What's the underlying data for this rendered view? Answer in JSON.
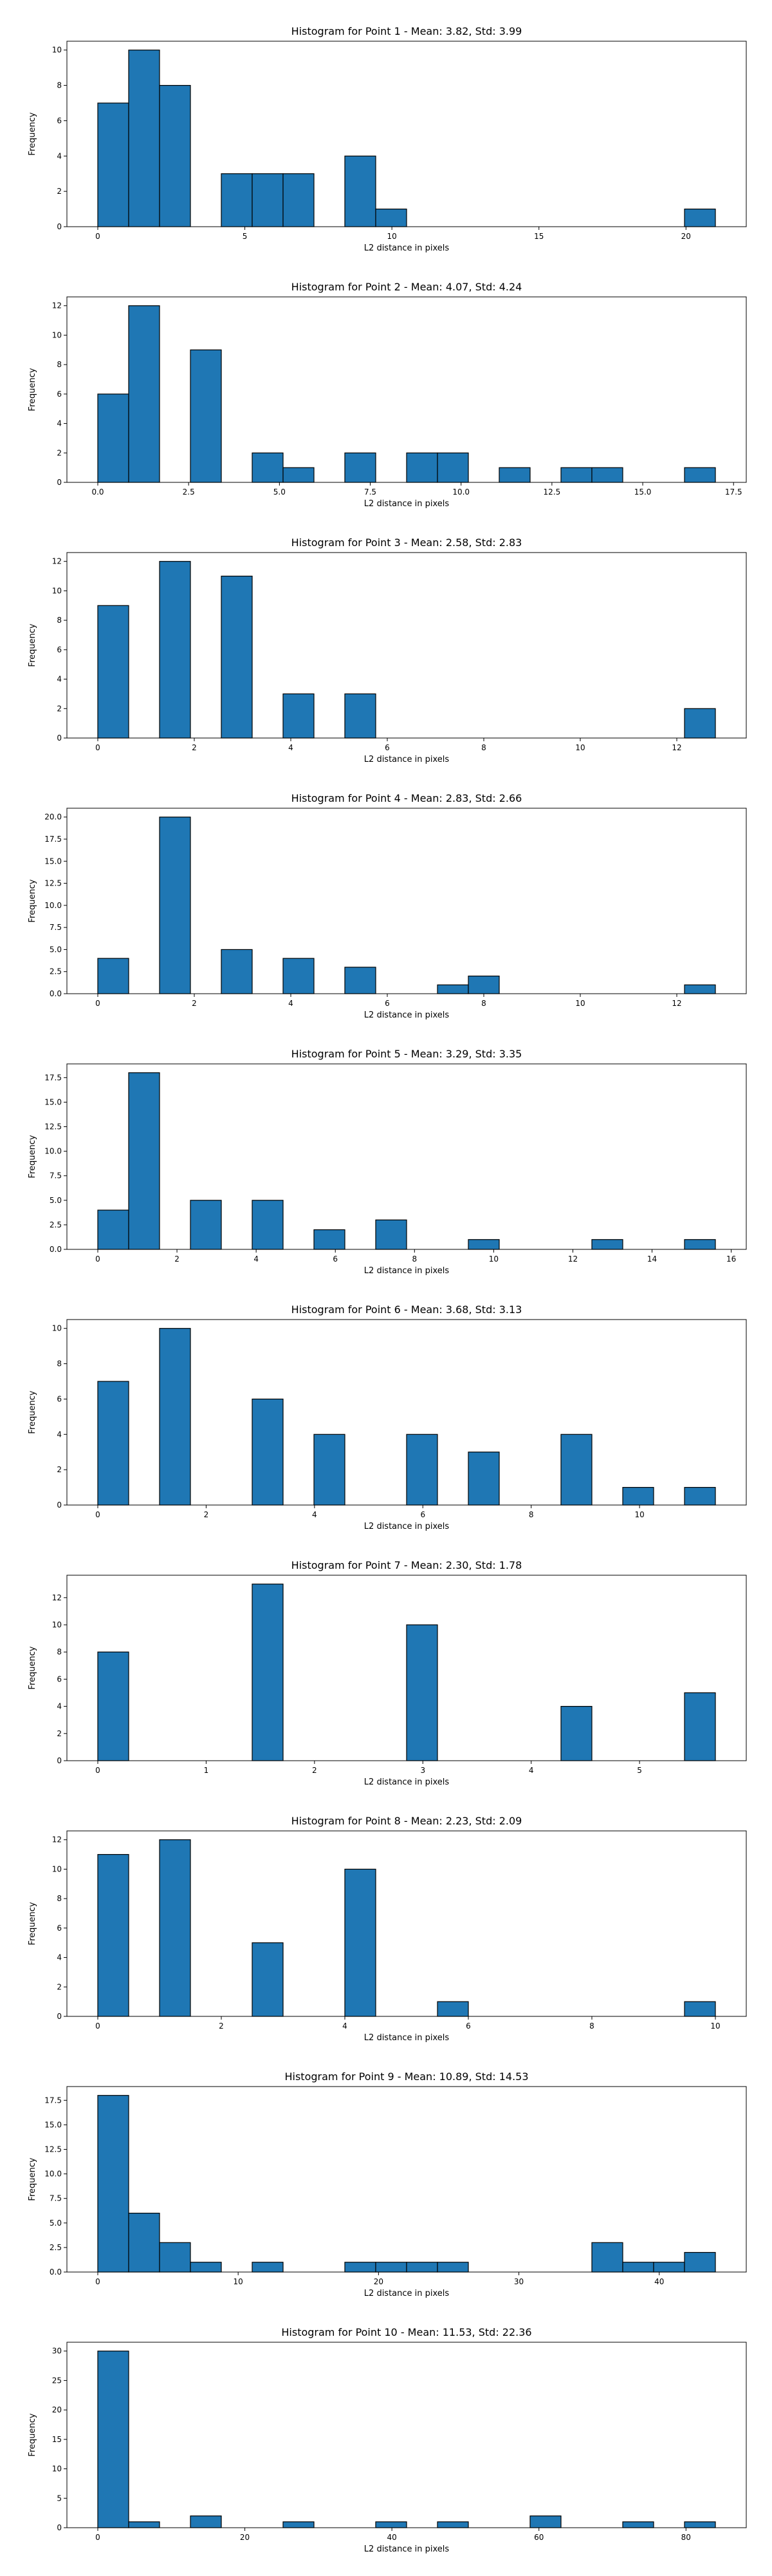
{
  "colors": {
    "bar": "#1f77b4",
    "edge": "#000000",
    "axis": "#000000",
    "background": "#ffffff"
  },
  "chart_data": [
    {
      "type": "bar",
      "title": "Histogram for Point 1 - Mean: 3.82, Std: 3.99",
      "xlabel": "L2 distance in pixels",
      "ylabel": "Frequency",
      "xlim": [
        -1.05,
        22.05
      ],
      "ylim": [
        0,
        10.5
      ],
      "xticks": [
        0,
        5,
        10,
        15,
        20
      ],
      "xtick_labels": [
        "0",
        "5",
        "10",
        "15",
        "20"
      ],
      "yticks": [
        0,
        2,
        4,
        6,
        8,
        10
      ],
      "ytick_labels": [
        "0",
        "2",
        "4",
        "6",
        "8",
        "10"
      ],
      "bin_width": 1.05,
      "bins": [
        {
          "x": 0.0,
          "count": 7
        },
        {
          "x": 1.05,
          "count": 10
        },
        {
          "x": 2.1,
          "count": 8
        },
        {
          "x": 4.2,
          "count": 3
        },
        {
          "x": 5.25,
          "count": 3
        },
        {
          "x": 6.3,
          "count": 3
        },
        {
          "x": 8.4,
          "count": 4
        },
        {
          "x": 9.45,
          "count": 1
        },
        {
          "x": 19.95,
          "count": 1
        }
      ]
    },
    {
      "type": "bar",
      "title": "Histogram for Point 2 - Mean: 4.07, Std: 4.24",
      "xlabel": "L2 distance in pixels",
      "ylabel": "Frequency",
      "xlim": [
        -0.85,
        17.85
      ],
      "ylim": [
        0,
        12.6
      ],
      "xticks": [
        0,
        2.5,
        5,
        7.5,
        10,
        12.5,
        15,
        17.5
      ],
      "xtick_labels": [
        "0.0",
        "2.5",
        "5.0",
        "7.5",
        "10.0",
        "12.5",
        "15.0",
        "17.5"
      ],
      "yticks": [
        0,
        2,
        4,
        6,
        8,
        10,
        12
      ],
      "ytick_labels": [
        "0",
        "2",
        "4",
        "6",
        "8",
        "10",
        "12"
      ],
      "bin_width": 0.85,
      "bins": [
        {
          "x": 0.0,
          "count": 6
        },
        {
          "x": 0.85,
          "count": 12
        },
        {
          "x": 2.55,
          "count": 9
        },
        {
          "x": 4.25,
          "count": 2
        },
        {
          "x": 5.1,
          "count": 1
        },
        {
          "x": 6.8,
          "count": 2
        },
        {
          "x": 8.5,
          "count": 2
        },
        {
          "x": 9.35,
          "count": 2
        },
        {
          "x": 11.05,
          "count": 1
        },
        {
          "x": 12.75,
          "count": 1
        },
        {
          "x": 13.6,
          "count": 1
        },
        {
          "x": 16.15,
          "count": 1
        }
      ]
    },
    {
      "type": "bar",
      "title": "Histogram for Point 3 - Mean: 2.58, Std: 2.83",
      "xlabel": "L2 distance in pixels",
      "ylabel": "Frequency",
      "xlim": [
        -0.64,
        13.44
      ],
      "ylim": [
        0,
        12.6
      ],
      "xticks": [
        0,
        2,
        4,
        6,
        8,
        10,
        12
      ],
      "xtick_labels": [
        "0",
        "2",
        "4",
        "6",
        "8",
        "10",
        "12"
      ],
      "yticks": [
        0,
        2,
        4,
        6,
        8,
        10,
        12
      ],
      "ytick_labels": [
        "0",
        "2",
        "4",
        "6",
        "8",
        "10",
        "12"
      ],
      "bin_width": 0.64,
      "bins": [
        {
          "x": 0.0,
          "count": 9
        },
        {
          "x": 1.28,
          "count": 12
        },
        {
          "x": 2.56,
          "count": 11
        },
        {
          "x": 3.84,
          "count": 3
        },
        {
          "x": 5.12,
          "count": 3
        },
        {
          "x": 12.16,
          "count": 2
        }
      ]
    },
    {
      "type": "bar",
      "title": "Histogram for Point 4 - Mean: 2.83, Std: 2.66",
      "xlabel": "L2 distance in pixels",
      "ylabel": "Frequency",
      "xlim": [
        -0.64,
        13.44
      ],
      "ylim": [
        0,
        21
      ],
      "xticks": [
        0,
        2,
        4,
        6,
        8,
        10,
        12
      ],
      "xtick_labels": [
        "0",
        "2",
        "4",
        "6",
        "8",
        "10",
        "12"
      ],
      "yticks": [
        0,
        2.5,
        5,
        7.5,
        10,
        12.5,
        15,
        17.5,
        20
      ],
      "ytick_labels": [
        "0.0",
        "2.5",
        "5.0",
        "7.5",
        "10.0",
        "12.5",
        "15.0",
        "17.5",
        "20.0"
      ],
      "bin_width": 0.64,
      "bins": [
        {
          "x": 0.0,
          "count": 4
        },
        {
          "x": 1.28,
          "count": 20
        },
        {
          "x": 2.56,
          "count": 5
        },
        {
          "x": 3.84,
          "count": 4
        },
        {
          "x": 5.12,
          "count": 3
        },
        {
          "x": 7.04,
          "count": 1
        },
        {
          "x": 7.68,
          "count": 2
        },
        {
          "x": 12.16,
          "count": 1
        }
      ]
    },
    {
      "type": "bar",
      "title": "Histogram for Point 5 - Mean: 3.29, Std: 3.35",
      "xlabel": "L2 distance in pixels",
      "ylabel": "Frequency",
      "xlim": [
        -0.78,
        16.38
      ],
      "ylim": [
        0,
        18.9
      ],
      "xticks": [
        0,
        2,
        4,
        6,
        8,
        10,
        12,
        14,
        16
      ],
      "xtick_labels": [
        "0",
        "2",
        "4",
        "6",
        "8",
        "10",
        "12",
        "14",
        "16"
      ],
      "yticks": [
        0,
        2.5,
        5,
        7.5,
        10,
        12.5,
        15,
        17.5
      ],
      "ytick_labels": [
        "0.0",
        "2.5",
        "5.0",
        "7.5",
        "10.0",
        "12.5",
        "15.0",
        "17.5"
      ],
      "bin_width": 0.78,
      "bins": [
        {
          "x": 0.0,
          "count": 4
        },
        {
          "x": 0.78,
          "count": 18
        },
        {
          "x": 2.34,
          "count": 5
        },
        {
          "x": 3.9,
          "count": 5
        },
        {
          "x": 5.46,
          "count": 2
        },
        {
          "x": 7.02,
          "count": 3
        },
        {
          "x": 9.36,
          "count": 1
        },
        {
          "x": 12.48,
          "count": 1
        },
        {
          "x": 14.82,
          "count": 1
        }
      ]
    },
    {
      "type": "bar",
      "title": "Histogram for Point 6 - Mean: 3.68, Std: 3.13",
      "xlabel": "L2 distance in pixels",
      "ylabel": "Frequency",
      "xlim": [
        -0.57,
        11.97
      ],
      "ylim": [
        0,
        10.5
      ],
      "xticks": [
        0,
        2,
        4,
        6,
        8,
        10
      ],
      "xtick_labels": [
        "0",
        "2",
        "4",
        "6",
        "8",
        "10"
      ],
      "yticks": [
        0,
        2,
        4,
        6,
        8,
        10
      ],
      "ytick_labels": [
        "0",
        "2",
        "4",
        "6",
        "8",
        "10"
      ],
      "bin_width": 0.57,
      "bins": [
        {
          "x": 0.0,
          "count": 7
        },
        {
          "x": 1.14,
          "count": 10
        },
        {
          "x": 2.85,
          "count": 6
        },
        {
          "x": 3.99,
          "count": 4
        },
        {
          "x": 5.7,
          "count": 4
        },
        {
          "x": 6.84,
          "count": 3
        },
        {
          "x": 8.55,
          "count": 4
        },
        {
          "x": 9.69,
          "count": 1
        },
        {
          "x": 10.83,
          "count": 1
        }
      ]
    },
    {
      "type": "bar",
      "title": "Histogram for Point 7 - Mean: 2.30, Std: 1.78",
      "xlabel": "L2 distance in pixels",
      "ylabel": "Frequency",
      "xlim": [
        -0.285,
        5.985
      ],
      "ylim": [
        0,
        13.65
      ],
      "xticks": [
        0,
        1,
        2,
        3,
        4,
        5
      ],
      "xtick_labels": [
        "0",
        "1",
        "2",
        "3",
        "4",
        "5"
      ],
      "yticks": [
        0,
        2,
        4,
        6,
        8,
        10,
        12
      ],
      "ytick_labels": [
        "0",
        "2",
        "4",
        "6",
        "8",
        "10",
        "12"
      ],
      "bin_width": 0.285,
      "bins": [
        {
          "x": 0.0,
          "count": 8
        },
        {
          "x": 1.425,
          "count": 13
        },
        {
          "x": 2.85,
          "count": 10
        },
        {
          "x": 4.275,
          "count": 4
        },
        {
          "x": 5.415,
          "count": 5
        }
      ]
    },
    {
      "type": "bar",
      "title": "Histogram for Point 8 - Mean: 2.23, Std: 2.09",
      "xlabel": "L2 distance in pixels",
      "ylabel": "Frequency",
      "xlim": [
        -0.5,
        10.5
      ],
      "ylim": [
        0,
        12.6
      ],
      "xticks": [
        0,
        2,
        4,
        6,
        8,
        10
      ],
      "xtick_labels": [
        "0",
        "2",
        "4",
        "6",
        "8",
        "10"
      ],
      "yticks": [
        0,
        2,
        4,
        6,
        8,
        10,
        12
      ],
      "ytick_labels": [
        "0",
        "2",
        "4",
        "6",
        "8",
        "10",
        "12"
      ],
      "bin_width": 0.5,
      "bins": [
        {
          "x": 0.0,
          "count": 11
        },
        {
          "x": 1.0,
          "count": 12
        },
        {
          "x": 2.5,
          "count": 5
        },
        {
          "x": 4.0,
          "count": 10
        },
        {
          "x": 5.5,
          "count": 1
        },
        {
          "x": 9.5,
          "count": 1
        }
      ]
    },
    {
      "type": "bar",
      "title": "Histogram for Point 9 - Mean: 10.89, Std: 14.53",
      "xlabel": "L2 distance in pixels",
      "ylabel": "Frequency",
      "xlim": [
        -2.2,
        46.2
      ],
      "ylim": [
        0,
        18.9
      ],
      "xticks": [
        0,
        10,
        20,
        30,
        40
      ],
      "xtick_labels": [
        "0",
        "10",
        "20",
        "30",
        "40"
      ],
      "yticks": [
        0,
        2.5,
        5,
        7.5,
        10,
        12.5,
        15,
        17.5
      ],
      "ytick_labels": [
        "0.0",
        "2.5",
        "5.0",
        "7.5",
        "10.0",
        "12.5",
        "15.0",
        "17.5"
      ],
      "bin_width": 2.2,
      "bins": [
        {
          "x": 0.0,
          "count": 18
        },
        {
          "x": 2.2,
          "count": 6
        },
        {
          "x": 4.4,
          "count": 3
        },
        {
          "x": 6.6,
          "count": 1
        },
        {
          "x": 11.0,
          "count": 1
        },
        {
          "x": 17.6,
          "count": 1
        },
        {
          "x": 19.8,
          "count": 1
        },
        {
          "x": 22.0,
          "count": 1
        },
        {
          "x": 24.2,
          "count": 1
        },
        {
          "x": 35.2,
          "count": 3
        },
        {
          "x": 37.4,
          "count": 1
        },
        {
          "x": 39.6,
          "count": 1
        },
        {
          "x": 41.8,
          "count": 2
        }
      ]
    },
    {
      "type": "bar",
      "title": "Histogram for Point 10 - Mean: 11.53, Std: 22.36",
      "xlabel": "L2 distance in pixels",
      "ylabel": "Frequency",
      "xlim": [
        -4.2,
        88.2
      ],
      "ylim": [
        0,
        31.5
      ],
      "xticks": [
        0,
        20,
        40,
        60,
        80
      ],
      "xtick_labels": [
        "0",
        "20",
        "40",
        "60",
        "80"
      ],
      "yticks": [
        0,
        5,
        10,
        15,
        20,
        25,
        30
      ],
      "ytick_labels": [
        "0",
        "5",
        "10",
        "15",
        "20",
        "25",
        "30"
      ],
      "bin_width": 4.2,
      "bins": [
        {
          "x": 0.0,
          "count": 30
        },
        {
          "x": 4.2,
          "count": 1
        },
        {
          "x": 12.6,
          "count": 2
        },
        {
          "x": 25.2,
          "count": 1
        },
        {
          "x": 37.8,
          "count": 1
        },
        {
          "x": 46.2,
          "count": 1
        },
        {
          "x": 58.8,
          "count": 2
        },
        {
          "x": 71.4,
          "count": 1
        },
        {
          "x": 79.8,
          "count": 1
        }
      ]
    }
  ]
}
